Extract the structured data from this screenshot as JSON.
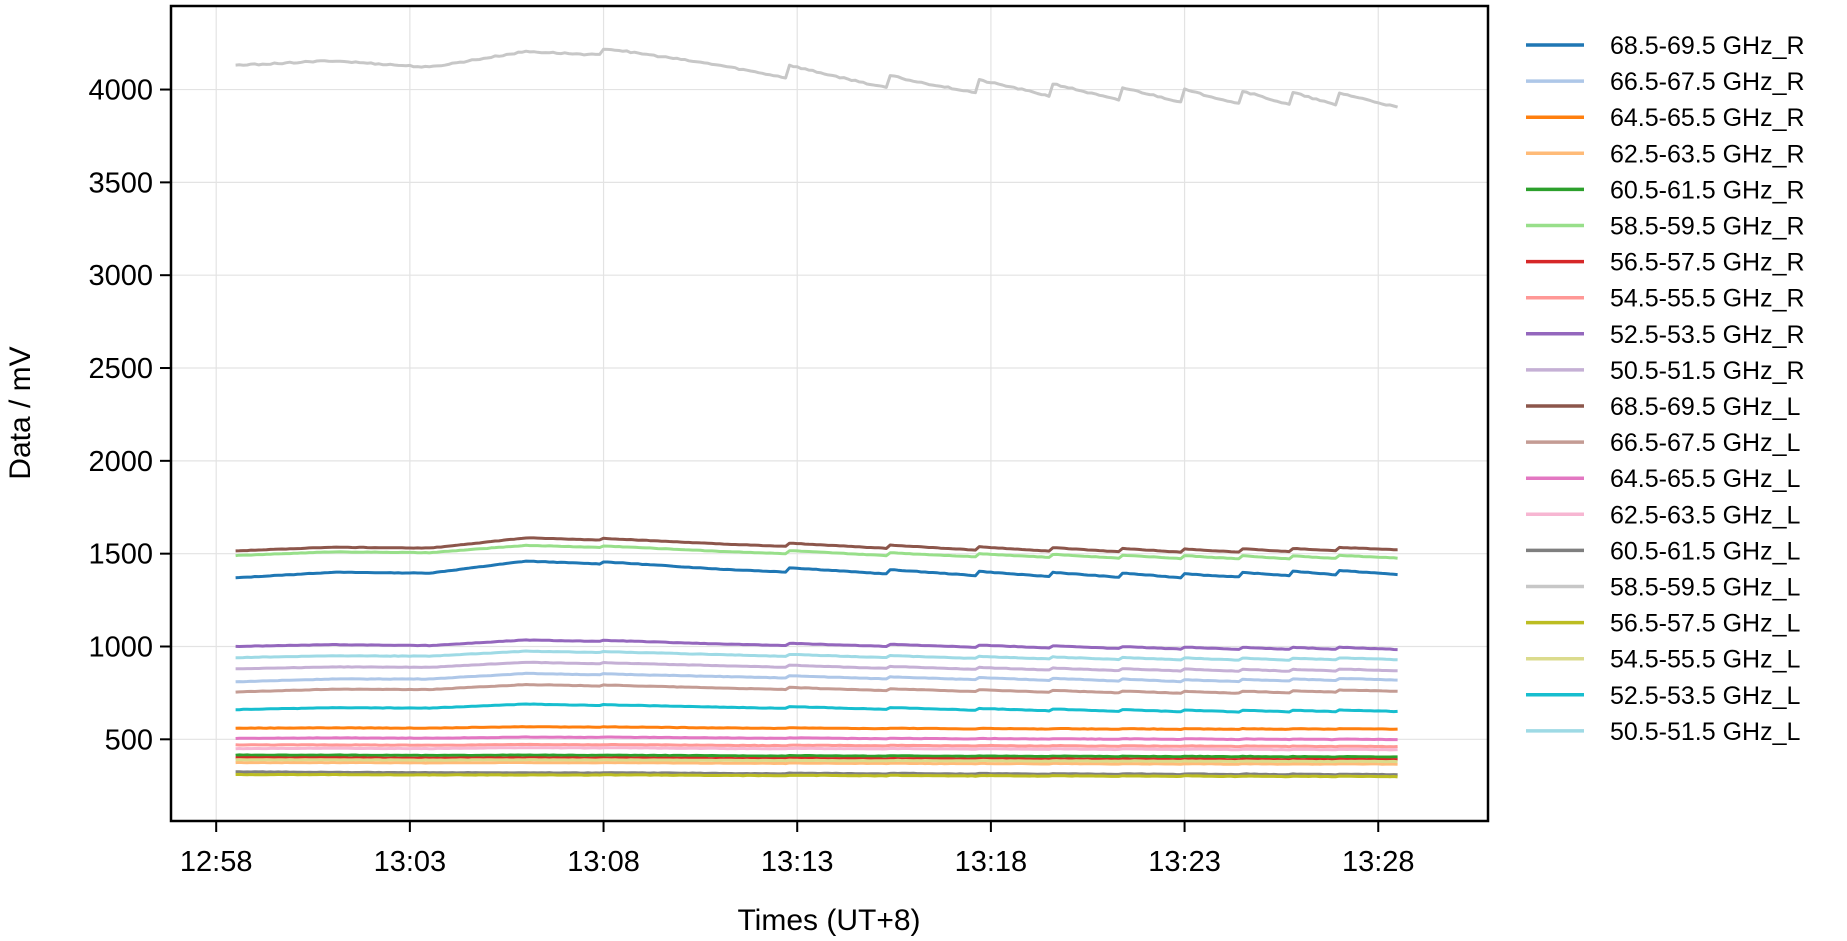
{
  "chart_data": {
    "type": "line",
    "title": "",
    "xlabel": "Times (UT+8)",
    "ylabel": "Data / mV",
    "x_ticks": [
      "12:58",
      "13:03",
      "13:08",
      "13:13",
      "13:18",
      "13:23",
      "13:28"
    ],
    "xlim": [
      "12:56:50",
      "13:30:50"
    ],
    "x_start": "12:58:30",
    "x_end": "13:28:30",
    "ylim": [
      60,
      4450
    ],
    "y_ticks": [
      500,
      1000,
      1500,
      2000,
      2500,
      3000,
      3500,
      4000
    ],
    "grid": true,
    "legend_position": "outside-right",
    "pattern": {
      "jump_times": [
        "13:08",
        "13:12:45",
        "13:15:20",
        "13:17:40",
        "13:19:35",
        "13:21:20",
        "13:23",
        "13:24:30",
        "13:25:45",
        "13:27"
      ],
      "note_values": "values are sampled levels; sawtooth drift between jumps"
    },
    "series": [
      {
        "name": "68.5-69.5 GHz_R",
        "color": "#1f77b4",
        "values": [
          1370,
          1400,
          1395,
          1460,
          1440,
          1420,
          1410,
          1400,
          1390,
          1385,
          1380,
          1395,
          1400
        ]
      },
      {
        "name": "66.5-67.5 GHz_R",
        "color": "#aec7e8",
        "values": [
          810,
          825,
          825,
          855,
          845,
          840,
          835,
          830,
          825,
          820,
          815,
          820,
          825
        ]
      },
      {
        "name": "64.5-65.5 GHz_R",
        "color": "#ff7f0e",
        "values": [
          560,
          562,
          560,
          568,
          565,
          562,
          560,
          558,
          557,
          556,
          555,
          556,
          556
        ]
      },
      {
        "name": "62.5-63.5 GHz_R",
        "color": "#ffbb78",
        "values": [
          375,
          375,
          373,
          375,
          373,
          372,
          371,
          370,
          369,
          368,
          367,
          367,
          367
        ]
      },
      {
        "name": "60.5-61.5 GHz_R",
        "color": "#2ca02c",
        "values": [
          415,
          415,
          413,
          415,
          413,
          412,
          411,
          410,
          409,
          408,
          407,
          406,
          406
        ]
      },
      {
        "name": "58.5-59.5 GHz_R",
        "color": "#98df8a",
        "values": [
          1490,
          1510,
          1505,
          1545,
          1530,
          1515,
          1505,
          1495,
          1490,
          1485,
          1480,
          1480,
          1485
        ]
      },
      {
        "name": "56.5-57.5 GHz_R",
        "color": "#d62728",
        "values": [
          400,
          400,
          398,
          400,
          398,
          397,
          396,
          395,
          394,
          393,
          392,
          391,
          391
        ]
      },
      {
        "name": "54.5-55.5 GHz_R",
        "color": "#ff9896",
        "values": [
          470,
          470,
          468,
          472,
          470,
          468,
          467,
          466,
          465,
          464,
          463,
          462,
          462
        ]
      },
      {
        "name": "52.5-53.5 GHz_R",
        "color": "#9467bd",
        "values": [
          1000,
          1010,
          1005,
          1035,
          1025,
          1015,
          1010,
          1005,
          1000,
          995,
          990,
          990,
          990
        ]
      },
      {
        "name": "50.5-51.5 GHz_R",
        "color": "#c5b0d5",
        "values": [
          880,
          890,
          888,
          915,
          905,
          898,
          892,
          886,
          880,
          876,
          872,
          872,
          875
        ]
      },
      {
        "name": "68.5-69.5 GHz_L",
        "color": "#8c564b",
        "values": [
          1515,
          1535,
          1530,
          1585,
          1570,
          1555,
          1545,
          1535,
          1525,
          1520,
          1515,
          1520,
          1530
        ]
      },
      {
        "name": "66.5-67.5 GHz_L",
        "color": "#c49c94",
        "values": [
          755,
          770,
          768,
          795,
          785,
          778,
          772,
          766,
          760,
          756,
          752,
          756,
          765
        ]
      },
      {
        "name": "64.5-65.5 GHz_L",
        "color": "#e377c2",
        "values": [
          505,
          508,
          506,
          512,
          510,
          508,
          506,
          504,
          503,
          502,
          501,
          500,
          500
        ]
      },
      {
        "name": "62.5-63.5 GHz_L",
        "color": "#f7b6d2",
        "values": [
          450,
          452,
          450,
          455,
          453,
          451,
          450,
          449,
          448,
          447,
          446,
          445,
          445
        ]
      },
      {
        "name": "60.5-61.5 GHz_L",
        "color": "#7f7f7f",
        "values": [
          325,
          322,
          320,
          320,
          318,
          317,
          316,
          315,
          314,
          313,
          312,
          311,
          311
        ]
      },
      {
        "name": "58.5-59.5 GHz_L",
        "color": "#c7c7c7",
        "values": [
          4130,
          4155,
          4120,
          4205,
          4180,
          4140,
          4080,
          4030,
          4010,
          3980,
          3960,
          3950,
          3940
        ]
      },
      {
        "name": "56.5-57.5 GHz_L",
        "color": "#bcbd22",
        "values": [
          310,
          310,
          308,
          308,
          307,
          306,
          305,
          304,
          303,
          302,
          301,
          300,
          300
        ]
      },
      {
        "name": "54.5-55.5 GHz_L",
        "color": "#dbdb8d",
        "values": [
          390,
          390,
          388,
          390,
          388,
          387,
          386,
          385,
          384,
          383,
          382,
          381,
          381
        ]
      },
      {
        "name": "52.5-53.5 GHz_L",
        "color": "#17becf",
        "values": [
          660,
          670,
          668,
          690,
          680,
          675,
          670,
          665,
          660,
          656,
          652,
          652,
          655
        ]
      },
      {
        "name": "50.5-51.5 GHz_L",
        "color": "#9edae5",
        "values": [
          940,
          950,
          948,
          975,
          965,
          958,
          950,
          944,
          940,
          936,
          932,
          932,
          935
        ]
      }
    ]
  }
}
